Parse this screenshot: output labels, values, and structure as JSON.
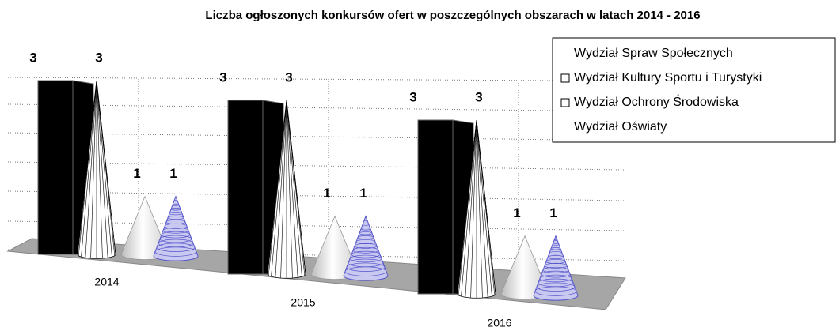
{
  "chart_data": {
    "type": "bar3d",
    "title": "Liczba ogłoszonych konkursów ofert w poszczególnych obszarach w latach 2014 - 2016",
    "categories": [
      "2014",
      "2015",
      "2016"
    ],
    "series": [
      {
        "name": "Wydział Spraw  Społecznych",
        "color": "#000000",
        "values": [
          3,
          3,
          3
        ]
      },
      {
        "name": "Wydział Kultury Sportu i Turystyki",
        "color": "#ffffff",
        "values": [
          3,
          3,
          3
        ]
      },
      {
        "name": "Wydział Ochrony Środowiska",
        "color": "#ffffff",
        "values": [
          1,
          1,
          1
        ]
      },
      {
        "name": "Wydział Oświaty",
        "color": "#5555cc",
        "values": [
          1,
          1,
          1
        ]
      }
    ]
  }
}
